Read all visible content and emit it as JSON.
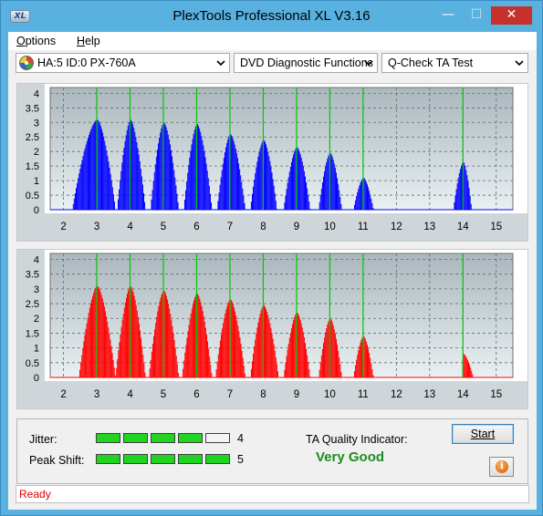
{
  "window": {
    "title": "PlexTools Professional XL V3.16",
    "icon_text": "XL",
    "min_glyph": "—",
    "max_glyph": "☐",
    "close_glyph": "✕"
  },
  "menu": {
    "items": [
      {
        "label": "Options",
        "accel": "O",
        "rest": "ptions"
      },
      {
        "label": "Help",
        "accel": "H",
        "rest": "elp"
      }
    ]
  },
  "toolbar": {
    "drive": "HA:5 ID:0  PX-760A",
    "function": "DVD Diagnostic Functions",
    "test": "Q-Check TA Test"
  },
  "results": {
    "jitter_label": "Jitter:",
    "jitter_value": "4",
    "jitter_level": 4,
    "peak_shift_label": "Peak Shift:",
    "peak_shift_value": "5",
    "peak_shift_level": 5,
    "meter_segments": 5,
    "ta_quality_label": "TA Quality Indicator:",
    "ta_quality_value": "Very Good",
    "start_label": "Start",
    "info_glyph": "i"
  },
  "status": {
    "text": "Ready"
  },
  "colors": {
    "top_chart_bars": "#0000ff",
    "bottom_chart_bars": "#ff0000",
    "marker_lines": "#00c800",
    "meter_on": "#22d422",
    "quality_text": "#1e8c1e",
    "status_text": "#e00000"
  },
  "chart_data": [
    {
      "type": "bar",
      "title": "",
      "x_ticks": [
        "2",
        "3",
        "4",
        "5",
        "6",
        "7",
        "8",
        "9",
        "10",
        "11",
        "12",
        "13",
        "14",
        "15"
      ],
      "y_ticks": [
        "0",
        "0.5",
        "1",
        "1.5",
        "2",
        "2.5",
        "3",
        "3.5",
        "4"
      ],
      "xlim": [
        1.6,
        15.5
      ],
      "ylim": [
        0,
        4.2
      ],
      "grid": true,
      "markers": [
        3,
        4,
        5,
        6,
        7,
        8,
        9,
        10,
        11,
        14
      ],
      "peaks": [
        {
          "center": 3,
          "height": 3.1,
          "left": 0.75,
          "right": 0.55
        },
        {
          "center": 4,
          "height": 3.1,
          "left": 0.4,
          "right": 0.45
        },
        {
          "center": 5,
          "height": 3.0,
          "left": 0.4,
          "right": 0.45
        },
        {
          "center": 6,
          "height": 2.95,
          "left": 0.4,
          "right": 0.45
        },
        {
          "center": 7,
          "height": 2.6,
          "left": 0.4,
          "right": 0.45
        },
        {
          "center": 8,
          "height": 2.4,
          "left": 0.4,
          "right": 0.4
        },
        {
          "center": 9,
          "height": 2.15,
          "left": 0.4,
          "right": 0.4
        },
        {
          "center": 10,
          "height": 1.95,
          "left": 0.35,
          "right": 0.35
        },
        {
          "center": 11,
          "height": 1.1,
          "left": 0.3,
          "right": 0.3
        },
        {
          "center": 14,
          "height": 1.65,
          "left": 0.3,
          "right": 0.25
        }
      ]
    },
    {
      "type": "bar",
      "title": "",
      "x_ticks": [
        "2",
        "3",
        "4",
        "5",
        "6",
        "7",
        "8",
        "9",
        "10",
        "11",
        "12",
        "13",
        "14",
        "15"
      ],
      "y_ticks": [
        "0",
        "0.5",
        "1",
        "1.5",
        "2",
        "2.5",
        "3",
        "3.5",
        "4"
      ],
      "xlim": [
        1.6,
        15.5
      ],
      "ylim": [
        0,
        4.2
      ],
      "grid": true,
      "markers": [
        3,
        4,
        5,
        6,
        7,
        8,
        9,
        10,
        11,
        14
      ],
      "peaks": [
        {
          "center": 3,
          "height": 3.1,
          "left": 0.55,
          "right": 0.55
        },
        {
          "center": 4,
          "height": 3.1,
          "left": 0.45,
          "right": 0.45
        },
        {
          "center": 5,
          "height": 2.95,
          "left": 0.45,
          "right": 0.45
        },
        {
          "center": 6,
          "height": 2.85,
          "left": 0.45,
          "right": 0.45
        },
        {
          "center": 7,
          "height": 2.65,
          "left": 0.45,
          "right": 0.45
        },
        {
          "center": 8,
          "height": 2.45,
          "left": 0.4,
          "right": 0.45
        },
        {
          "center": 9,
          "height": 2.2,
          "left": 0.4,
          "right": 0.4
        },
        {
          "center": 10,
          "height": 2.0,
          "left": 0.35,
          "right": 0.35
        },
        {
          "center": 11,
          "height": 1.4,
          "left": 0.3,
          "right": 0.3
        },
        {
          "center": 14,
          "height": 0.8,
          "left": 0.05,
          "right": 0.3
        }
      ]
    }
  ]
}
